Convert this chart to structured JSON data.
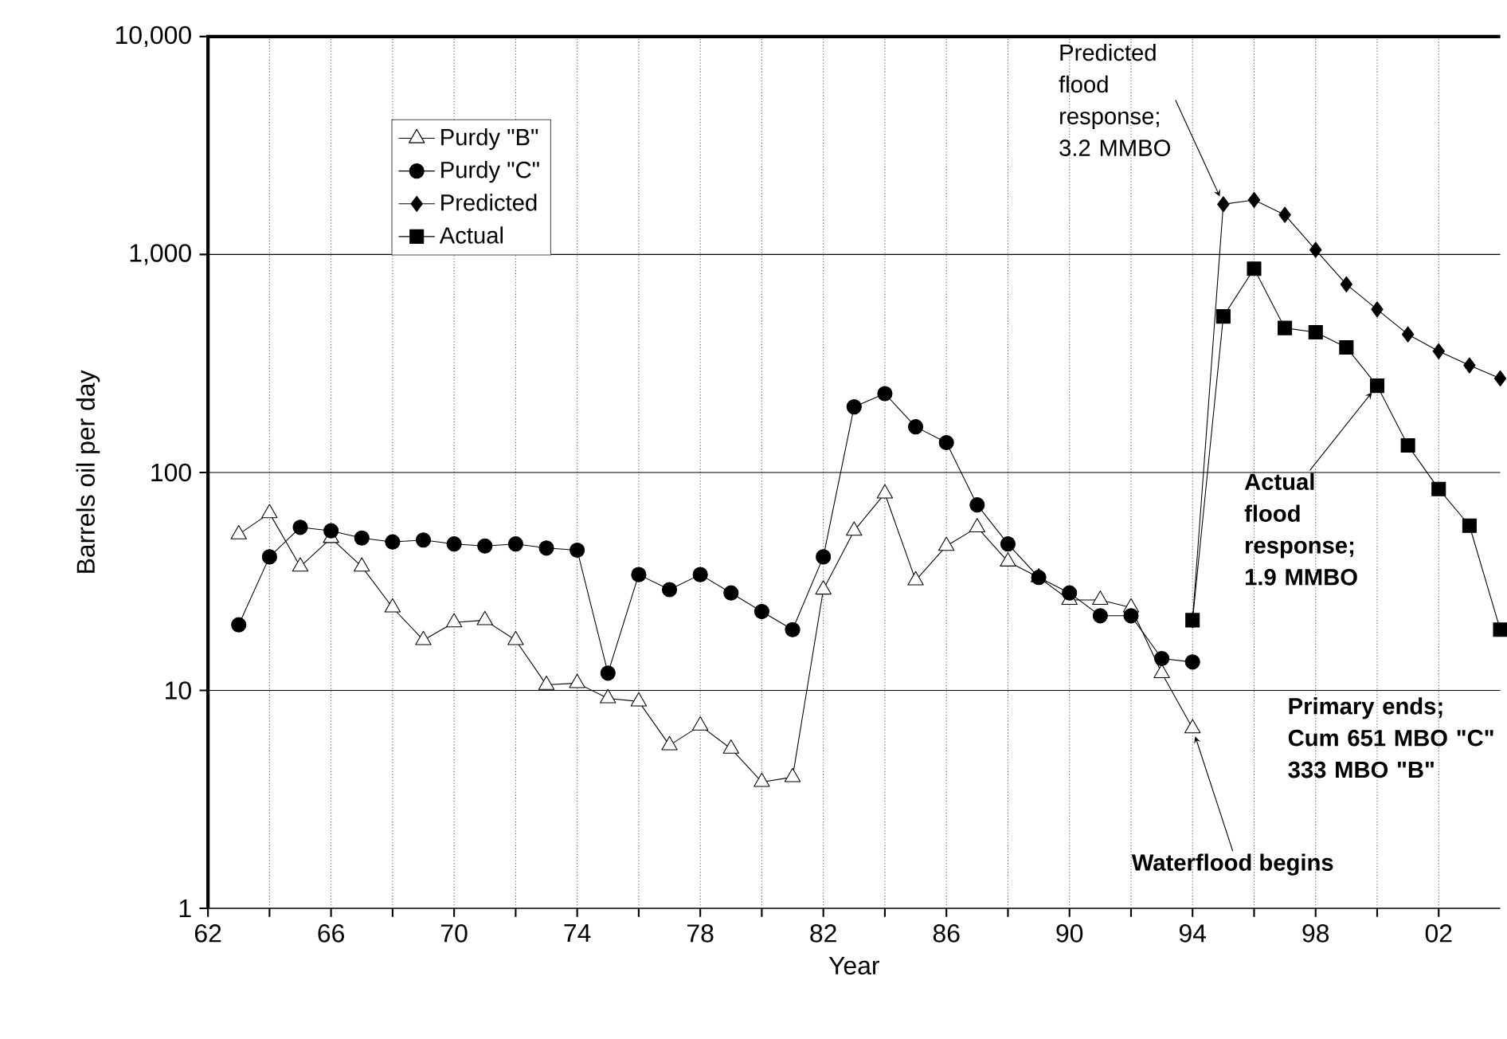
{
  "chart_data": {
    "type": "line",
    "xlabel": "Year",
    "ylabel": "Barrels oil per day",
    "log": "y",
    "grid": true,
    "legend": "top left",
    "line_style": "solid",
    "xlim": [
      1962,
      2004
    ],
    "xticks": [
      {
        "value": 1962,
        "label": "62"
      },
      {
        "value": 1964,
        "label": null
      },
      {
        "value": 1966,
        "label": "66"
      },
      {
        "value": 1968,
        "label": null
      },
      {
        "value": 1970,
        "label": "70"
      },
      {
        "value": 1972,
        "label": null
      },
      {
        "value": 1974,
        "label": "74"
      },
      {
        "value": 1976,
        "label": null
      },
      {
        "value": 1978,
        "label": "78"
      },
      {
        "value": 1980,
        "label": null
      },
      {
        "value": 1982,
        "label": "82"
      },
      {
        "value": 1984,
        "label": null
      },
      {
        "value": 1986,
        "label": "86"
      },
      {
        "value": 1988,
        "label": null
      },
      {
        "value": 1990,
        "label": "90"
      },
      {
        "value": 1992,
        "label": null
      },
      {
        "value": 1994,
        "label": "94"
      },
      {
        "value": 1996,
        "label": null
      },
      {
        "value": 1998,
        "label": "98"
      },
      {
        "value": 2000,
        "label": null
      },
      {
        "value": 2002,
        "label": "02"
      }
    ],
    "ylim": [
      1,
      10000
    ],
    "yticks": [
      1,
      10,
      100,
      {
        "value": 1000,
        "label": "1,000"
      },
      {
        "value": 10000,
        "label": "10,000"
      }
    ],
    "series": [
      {
        "name": "Purdy \"B\"",
        "color": "#000000",
        "marker": "triangle",
        "x": [
          1963,
          1964,
          1965,
          1966,
          1967,
          1968,
          1969,
          1970,
          1971,
          1972,
          1973,
          1974,
          1975,
          1976,
          1977,
          1978,
          1979,
          1980,
          1981,
          1982,
          1983,
          1984,
          1985,
          1986,
          1987,
          1988,
          1989,
          1990,
          1991,
          1992,
          1993,
          1994
        ],
        "values": [
          52,
          65,
          37,
          50,
          37,
          24,
          17,
          20.5,
          21,
          17,
          10.6,
          10.8,
          9.2,
          8.9,
          5.6,
          6.9,
          5.4,
          3.8,
          4,
          29,
          54,
          80,
          32,
          46,
          56,
          39,
          33,
          26,
          26,
          24,
          12,
          6.7
        ]
      },
      {
        "name": "Purdy \"C\"",
        "color": "#000000",
        "marker": "circle",
        "x": [
          1963,
          1964,
          1965,
          1966,
          1967,
          1968,
          1969,
          1970,
          1971,
          1972,
          1973,
          1974,
          1975,
          1976,
          1977,
          1978,
          1979,
          1980,
          1981,
          1982,
          1983,
          1984,
          1985,
          1986,
          1987,
          1988,
          1989,
          1990,
          1991,
          1992,
          1993,
          1994
        ],
        "values": [
          20,
          41,
          56,
          54,
          50,
          48,
          49,
          47,
          46,
          47,
          45,
          44,
          12,
          34,
          29,
          34,
          28,
          23,
          19,
          41,
          200,
          230,
          162,
          137,
          71,
          47,
          33,
          28,
          22,
          22,
          14,
          13.5
        ]
      },
      {
        "name": "Predicted",
        "color": "#000000",
        "marker": "diamond",
        "x": [
          1994,
          1995,
          1996,
          1997,
          1998,
          1999,
          2000,
          2001,
          2002,
          2003,
          2004
        ],
        "values": [
          21,
          1700,
          1780,
          1520,
          1050,
          730,
          560,
          430,
          360,
          310,
          270
        ]
      },
      {
        "name": "Actual",
        "color": "#000000",
        "marker": "square",
        "x": [
          1994,
          1995,
          1996,
          1997,
          1998,
          1999,
          2000,
          2001,
          2002,
          2003,
          2004
        ],
        "values": [
          21,
          520,
          860,
          460,
          440,
          375,
          250,
          133,
          84,
          57,
          19
        ]
      }
    ],
    "annotations": [
      {
        "text": "Predicted flood response; 3.2 MMBO",
        "x": 1995,
        "y": 1700
      },
      {
        "text": "Actual flood response; 1.9 MMBO",
        "x": 2000,
        "y": 250
      },
      "Primary ends; Cum 651 MBO \"C\" 333 MBO \"B\"",
      {
        "text": "Waterflood begins",
        "x": 1994,
        "y": 6.7
      }
    ]
  }
}
